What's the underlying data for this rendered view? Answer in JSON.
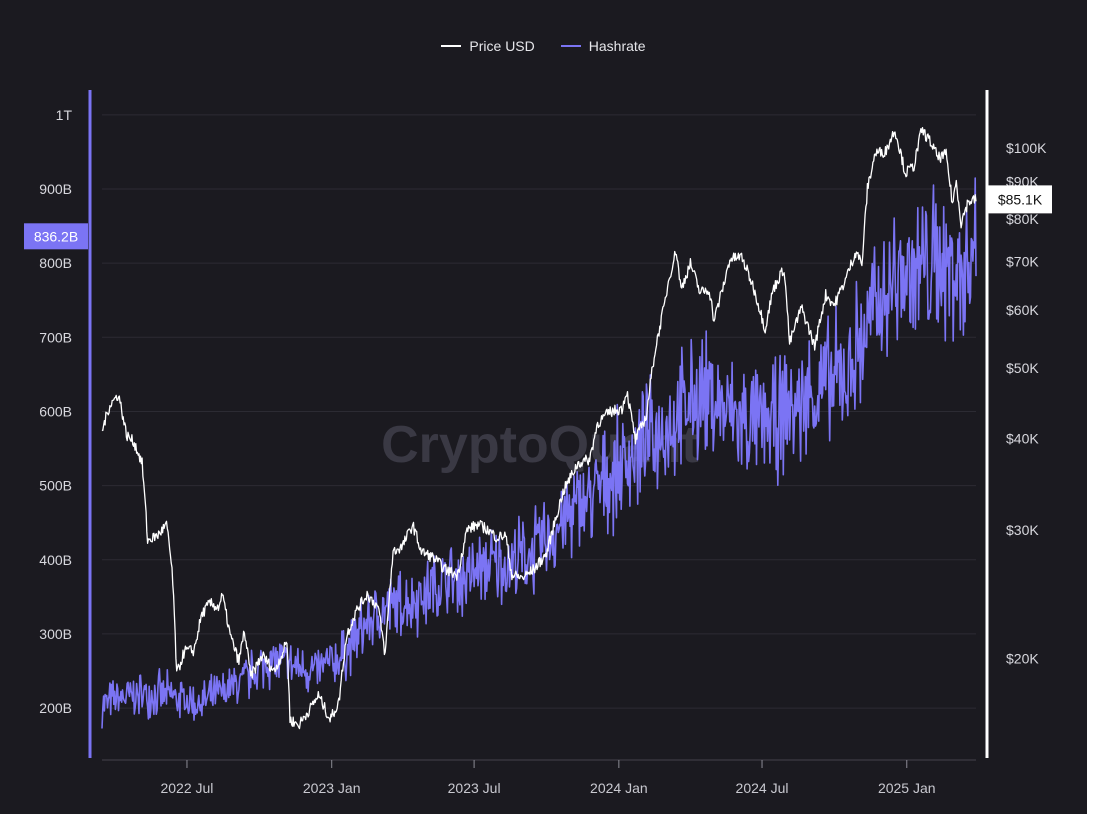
{
  "legend": {
    "price_label": "Price USD",
    "hashrate_label": "Hashrate"
  },
  "watermark": "CryptoQuant",
  "colors": {
    "background": "#1b1a20",
    "price": "#ffffff",
    "hashrate": "#7b74f4",
    "grid": "#2c2b33"
  },
  "chart_data": {
    "type": "line",
    "title": "",
    "x_ticks": [
      "2022 Jul",
      "2023 Jan",
      "2023 Jul",
      "2024 Jan",
      "2024 Jul",
      "2025 Jan"
    ],
    "x_range": [
      "2022-03-15",
      "2025-03-30"
    ],
    "y_left": {
      "label": "",
      "ticks": [
        "200B",
        "300B",
        "400B",
        "500B",
        "600B",
        "700B",
        "800B",
        "900B",
        "1T"
      ],
      "range": [
        130000000000,
        1020000000000
      ],
      "current_marker": "836.2B"
    },
    "y_right": {
      "label": "",
      "scale": "log",
      "ticks": [
        "$20K",
        "$30K",
        "$40K",
        "$50K",
        "$60K",
        "$70K",
        "$80K",
        "$90K",
        "$100K"
      ],
      "current_marker": "$85.1K"
    },
    "series": [
      {
        "name": "Price USD",
        "axis": "right",
        "color": "#ffffff",
        "points": [
          [
            "2022-03-15",
            41000
          ],
          [
            "2022-03-25",
            44500
          ],
          [
            "2022-04-05",
            46000
          ],
          [
            "2022-04-15",
            40500
          ],
          [
            "2022-04-25",
            39500
          ],
          [
            "2022-05-05",
            37000
          ],
          [
            "2022-05-12",
            29000
          ],
          [
            "2022-05-25",
            29500
          ],
          [
            "2022-06-05",
            30500
          ],
          [
            "2022-06-12",
            26500
          ],
          [
            "2022-06-18",
            19000
          ],
          [
            "2022-06-28",
            20500
          ],
          [
            "2022-07-10",
            20500
          ],
          [
            "2022-07-20",
            23000
          ],
          [
            "2022-07-30",
            23800
          ],
          [
            "2022-08-10",
            23500
          ],
          [
            "2022-08-15",
            24400
          ],
          [
            "2022-08-25",
            21500
          ],
          [
            "2022-09-05",
            19800
          ],
          [
            "2022-09-12",
            21800
          ],
          [
            "2022-09-20",
            18900
          ],
          [
            "2022-10-05",
            20200
          ],
          [
            "2022-10-20",
            19200
          ],
          [
            "2022-11-01",
            20500
          ],
          [
            "2022-11-05",
            21200
          ],
          [
            "2022-11-09",
            16500
          ],
          [
            "2022-11-20",
            16200
          ],
          [
            "2022-12-05",
            17100
          ],
          [
            "2022-12-15",
            17800
          ],
          [
            "2022-12-30",
            16500
          ],
          [
            "2023-01-10",
            17400
          ],
          [
            "2023-01-20",
            21500
          ],
          [
            "2023-02-01",
            23200
          ],
          [
            "2023-02-15",
            24500
          ],
          [
            "2023-03-01",
            23500
          ],
          [
            "2023-03-10",
            20200
          ],
          [
            "2023-03-20",
            28000
          ],
          [
            "2023-04-01",
            28500
          ],
          [
            "2023-04-14",
            30500
          ],
          [
            "2023-04-25",
            28000
          ],
          [
            "2023-05-10",
            27500
          ],
          [
            "2023-05-25",
            26500
          ],
          [
            "2023-06-10",
            26000
          ],
          [
            "2023-06-22",
            30000
          ],
          [
            "2023-07-05",
            30500
          ],
          [
            "2023-07-15",
            30200
          ],
          [
            "2023-07-30",
            29300
          ],
          [
            "2023-08-10",
            29500
          ],
          [
            "2023-08-18",
            26000
          ],
          [
            "2023-09-01",
            25800
          ],
          [
            "2023-09-15",
            26500
          ],
          [
            "2023-10-01",
            27800
          ],
          [
            "2023-10-23",
            34000
          ],
          [
            "2023-11-10",
            37000
          ],
          [
            "2023-11-25",
            37500
          ],
          [
            "2023-12-05",
            42000
          ],
          [
            "2023-12-20",
            43500
          ],
          [
            "2024-01-05",
            44000
          ],
          [
            "2024-01-11",
            46500
          ],
          [
            "2024-01-22",
            39800
          ],
          [
            "2024-02-05",
            43000
          ],
          [
            "2024-02-15",
            52000
          ],
          [
            "2024-02-28",
            61000
          ],
          [
            "2024-03-05",
            66500
          ],
          [
            "2024-03-14",
            72500
          ],
          [
            "2024-03-20",
            64000
          ],
          [
            "2024-04-01",
            69500
          ],
          [
            "2024-04-13",
            63500
          ],
          [
            "2024-04-25",
            64000
          ],
          [
            "2024-05-01",
            58000
          ],
          [
            "2024-05-15",
            66000
          ],
          [
            "2024-05-21",
            70500
          ],
          [
            "2024-06-05",
            71000
          ],
          [
            "2024-06-20",
            64500
          ],
          [
            "2024-07-05",
            56500
          ],
          [
            "2024-07-15",
            64000
          ],
          [
            "2024-07-29",
            68500
          ],
          [
            "2024-08-05",
            54000
          ],
          [
            "2024-08-20",
            60500
          ],
          [
            "2024-09-06",
            53500
          ],
          [
            "2024-09-20",
            63000
          ],
          [
            "2024-10-01",
            61000
          ],
          [
            "2024-10-15",
            66000
          ],
          [
            "2024-10-29",
            72500
          ],
          [
            "2024-11-05",
            69000
          ],
          [
            "2024-11-12",
            88000
          ],
          [
            "2024-11-22",
            98500
          ],
          [
            "2024-12-05",
            99000
          ],
          [
            "2024-12-17",
            106000
          ],
          [
            "2024-12-30",
            92500
          ],
          [
            "2025-01-10",
            94500
          ],
          [
            "2025-01-20",
            106000
          ],
          [
            "2025-01-31",
            102000
          ],
          [
            "2025-02-10",
            97000
          ],
          [
            "2025-02-20",
            98000
          ],
          [
            "2025-02-28",
            84000
          ],
          [
            "2025-03-05",
            90000
          ],
          [
            "2025-03-11",
            79000
          ],
          [
            "2025-03-20",
            84500
          ],
          [
            "2025-03-30",
            85100
          ]
        ]
      },
      {
        "name": "Hashrate",
        "axis": "left",
        "color": "#7b74f4",
        "points": [
          [
            "2022-03-15",
            205000000000
          ],
          [
            "2022-04-15",
            215000000000
          ],
          [
            "2022-05-15",
            220000000000
          ],
          [
            "2022-06-15",
            215000000000
          ],
          [
            "2022-07-15",
            205000000000
          ],
          [
            "2022-08-15",
            220000000000
          ],
          [
            "2022-09-15",
            240000000000
          ],
          [
            "2022-10-15",
            265000000000
          ],
          [
            "2022-11-15",
            255000000000
          ],
          [
            "2022-12-15",
            250000000000
          ],
          [
            "2023-01-15",
            270000000000
          ],
          [
            "2023-02-15",
            315000000000
          ],
          [
            "2023-03-15",
            335000000000
          ],
          [
            "2023-04-15",
            345000000000
          ],
          [
            "2023-05-15",
            365000000000
          ],
          [
            "2023-06-15",
            375000000000
          ],
          [
            "2023-07-15",
            390000000000
          ],
          [
            "2023-08-15",
            395000000000
          ],
          [
            "2023-09-15",
            410000000000
          ],
          [
            "2023-10-15",
            445000000000
          ],
          [
            "2023-11-15",
            475000000000
          ],
          [
            "2023-12-15",
            505000000000
          ],
          [
            "2024-01-15",
            540000000000
          ],
          [
            "2024-02-15",
            565000000000
          ],
          [
            "2024-03-15",
            590000000000
          ],
          [
            "2024-04-15",
            625000000000
          ],
          [
            "2024-05-15",
            600000000000
          ],
          [
            "2024-06-15",
            580000000000
          ],
          [
            "2024-07-15",
            585000000000
          ],
          [
            "2024-08-15",
            610000000000
          ],
          [
            "2024-09-15",
            630000000000
          ],
          [
            "2024-10-15",
            650000000000
          ],
          [
            "2024-11-15",
            720000000000
          ],
          [
            "2024-12-15",
            775000000000
          ],
          [
            "2025-01-15",
            790000000000
          ],
          [
            "2025-02-15",
            800000000000
          ],
          [
            "2025-03-15",
            790000000000
          ],
          [
            "2025-03-30",
            836200000000
          ]
        ]
      }
    ]
  }
}
